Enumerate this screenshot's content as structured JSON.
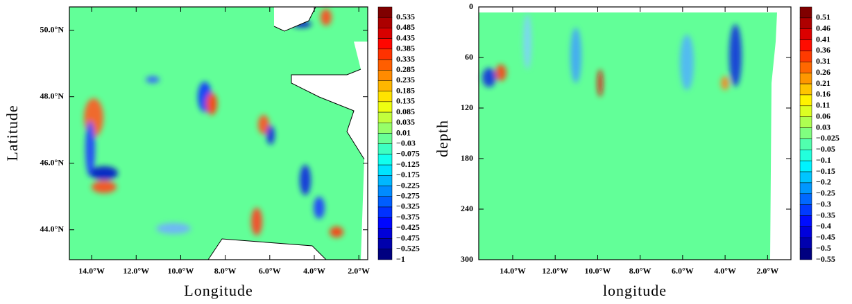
{
  "chart_data": [
    {
      "type": "heatmap",
      "xlabel": "Longitude",
      "ylabel": "Latitude",
      "xlim": [
        -15,
        -1.6
      ],
      "ylim": [
        43.1,
        50.7
      ],
      "xticks": [
        {
          "value": -14,
          "label": "14.0°W"
        },
        {
          "value": -12,
          "label": "12.0°W"
        },
        {
          "value": -10,
          "label": "10.0°W"
        },
        {
          "value": -8,
          "label": "8.0°W"
        },
        {
          "value": -6,
          "label": "6.0°W"
        },
        {
          "value": -4,
          "label": "4.0°W"
        },
        {
          "value": -2,
          "label": "2.0°W"
        }
      ],
      "yticks": [
        {
          "value": 44,
          "label": "44.0°N"
        },
        {
          "value": 46,
          "label": "46.0°N"
        },
        {
          "value": 48,
          "label": "48.0°N"
        },
        {
          "value": 50,
          "label": "50.0°N"
        }
      ],
      "colorbar_levels": [
        0.535,
        0.485,
        0.435,
        0.385,
        0.335,
        0.285,
        0.235,
        0.185,
        0.135,
        0.085,
        0.035,
        0.01,
        {
          "value": -0.03,
          "label": "−0.03"
        },
        {
          "value": -0.075,
          "label": "−0.075"
        },
        {
          "value": -0.125,
          "label": "−0.125"
        },
        {
          "value": -0.175,
          "label": "−0.175"
        },
        {
          "value": -0.225,
          "label": "−0.225"
        },
        {
          "value": -0.275,
          "label": "−0.275"
        },
        {
          "value": -0.325,
          "label": "−0.325"
        },
        {
          "value": -0.375,
          "label": "−0.375"
        },
        {
          "value": -0.425,
          "label": "−0.425"
        },
        {
          "value": -0.475,
          "label": "−0.475"
        },
        {
          "value": -0.525,
          "label": "−0.525"
        },
        {
          "value": -1,
          "label": "−1"
        }
      ]
    },
    {
      "type": "heatmap",
      "xlabel": "longitude",
      "ylabel": "depth",
      "xlim": [
        -15.6,
        -0.9
      ],
      "ylim": [
        300,
        0
      ],
      "xticks": [
        {
          "value": -14,
          "label": "14.0°W"
        },
        {
          "value": -12,
          "label": "12.0°W"
        },
        {
          "value": -10,
          "label": "10.0°W"
        },
        {
          "value": -8,
          "label": "8.0°W"
        },
        {
          "value": -6,
          "label": "6.0°W"
        },
        {
          "value": -4,
          "label": "4.0°W"
        },
        {
          "value": -2,
          "label": "2.0°W"
        }
      ],
      "yticks": [
        0,
        60,
        120,
        180,
        240,
        300
      ],
      "colorbar_levels": [
        0.51,
        0.46,
        0.41,
        0.36,
        0.31,
        0.26,
        0.21,
        0.16,
        0.11,
        0.06,
        0.03,
        {
          "value": -0.025,
          "label": "−0.025"
        },
        {
          "value": -0.05,
          "label": "−0.05"
        },
        {
          "value": -0.1,
          "label": "−0.1"
        },
        {
          "value": -0.15,
          "label": "−0.15"
        },
        {
          "value": -0.2,
          "label": "−0.2"
        },
        {
          "value": -0.25,
          "label": "−0.25"
        },
        {
          "value": -0.3,
          "label": "−0.3"
        },
        {
          "value": -0.35,
          "label": "−0.35"
        },
        {
          "value": -0.4,
          "label": "−0.4"
        },
        {
          "value": -0.45,
          "label": "−0.45"
        },
        {
          "value": -0.5,
          "label": "−0.5"
        },
        {
          "value": -0.55,
          "label": "−0.55"
        }
      ]
    }
  ]
}
